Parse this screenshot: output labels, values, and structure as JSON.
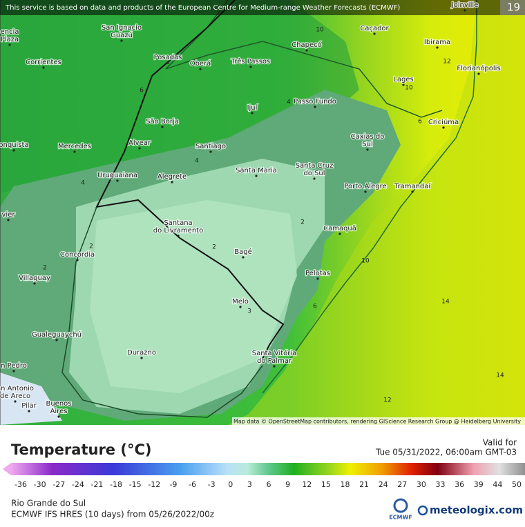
{
  "notice": "This service is based on data and products of the European Centre for Medium-range Weather Forecasts (ECMWF)",
  "corner_value": "19",
  "cities": [
    {
      "lines": [
        "Joinville"
      ]
    },
    {
      "lines": [
        "Caçador"
      ]
    },
    {
      "lines": [
        "Chapecó"
      ]
    },
    {
      "lines": [
        "Ibirama"
      ]
    },
    {
      "lines": [
        "San Ignacio",
        "Guazú"
      ]
    },
    {
      "lines": [
        "Posadas"
      ]
    },
    {
      "lines": [
        "Oberá"
      ]
    },
    {
      "lines": [
        "Três Passos"
      ]
    },
    {
      "lines": [
        "Corrientes"
      ]
    },
    {
      "lines": [
        "Florianópolis"
      ]
    },
    {
      "lines": [
        "Lages"
      ]
    },
    {
      "lines": [
        "Passo Fundo"
      ]
    },
    {
      "lines": [
        "Ijuí"
      ]
    },
    {
      "lines": [
        "São Borja"
      ]
    },
    {
      "lines": [
        "Criciúma"
      ]
    },
    {
      "lines": [
        "Caxias do",
        "Sul"
      ]
    },
    {
      "lines": [
        "Alvear"
      ]
    },
    {
      "lines": [
        "Mercedes"
      ]
    },
    {
      "lines": [
        "Santiago"
      ]
    },
    {
      "lines": [
        "Santa Maria"
      ]
    },
    {
      "lines": [
        "Santa Cruz",
        "do Sul"
      ]
    },
    {
      "lines": [
        "Uruguaiana"
      ]
    },
    {
      "lines": [
        "Alegrete"
      ]
    },
    {
      "lines": [
        "Porto Alegre"
      ]
    },
    {
      "lines": [
        "Tramandaí"
      ]
    },
    {
      "lines": [
        "Santana",
        "do Livramento"
      ]
    },
    {
      "lines": [
        "Camaquã"
      ]
    },
    {
      "lines": [
        "Concordia"
      ]
    },
    {
      "lines": [
        "Bagé"
      ]
    },
    {
      "lines": [
        "Villaguay"
      ]
    },
    {
      "lines": [
        "Pelotas"
      ]
    },
    {
      "lines": [
        "Melo"
      ]
    },
    {
      "lines": [
        "Gualeguaychú"
      ]
    },
    {
      "lines": [
        "Durazno"
      ]
    },
    {
      "lines": [
        "Santa Vitória",
        "do Palmar"
      ]
    },
    {
      "lines": [
        "Buenos",
        "Aires"
      ]
    },
    {
      "lines": [
        "encia",
        "Plaza"
      ]
    },
    {
      "lines": [
        "onquista"
      ]
    },
    {
      "lines": [
        "vier"
      ]
    },
    {
      "lines": [
        "n Pedro"
      ]
    },
    {
      "lines": [
        "an Antonio",
        "de Areco"
      ]
    },
    {
      "lines": [
        "Pilar"
      ]
    }
  ],
  "contour_labels": [
    10,
    12,
    10,
    6,
    4,
    6,
    4,
    4,
    2,
    2,
    2,
    2,
    10,
    6,
    14,
    14,
    12,
    3
  ],
  "attribution": "Map data © OpenStreetMap contributors, rendering GIScience Research Group @ Heidelberg University",
  "legend": {
    "title": "Temperature (°C)",
    "valid_label": "Valid for",
    "valid_time": "Tue 05/31/2022, 06:00am GMT-03",
    "ticks": [
      -36,
      -30,
      -27,
      -24,
      -21,
      -18,
      -15,
      -12,
      -9,
      -6,
      -3,
      0,
      3,
      6,
      9,
      12,
      15,
      18,
      21,
      24,
      27,
      30,
      33,
      36,
      39,
      44,
      50
    ]
  },
  "footer": {
    "region": "Rio Grande do Sul",
    "model": "ECMWF IFS HRES (10 days) from 05/26/2022/00z",
    "ecmwf": "ECMWF",
    "brand": "meteologix.com"
  }
}
